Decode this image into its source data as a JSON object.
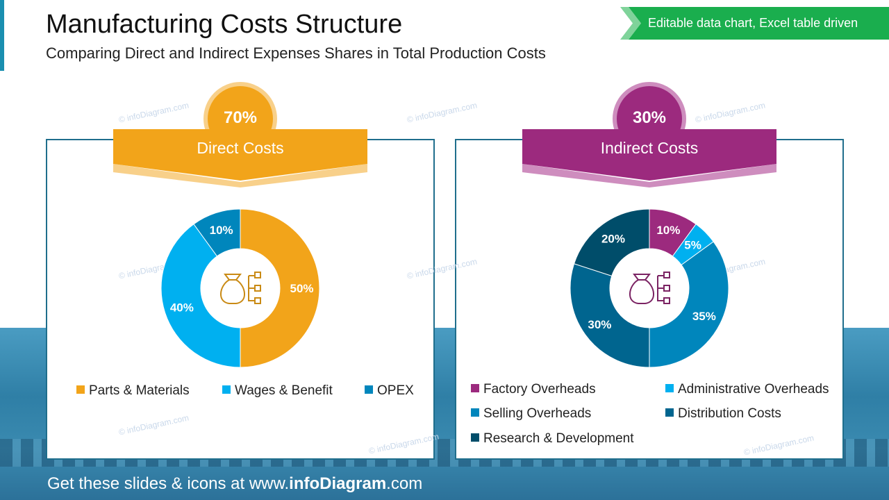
{
  "header": {
    "title": "Manufacturing Costs Structure",
    "subtitle": "Comparing Direct and Indirect Expenses Shares in Total Production Costs",
    "ribbon": "Editable data chart, Excel table driven"
  },
  "watermark": "© infoDiagram.com",
  "footer": {
    "prefix": "Get these slides & icons at www.",
    "brand": "infoDiagram",
    "suffix": ".com"
  },
  "chart_data": [
    {
      "type": "pie",
      "donut": true,
      "title": "Direct Costs",
      "total_share": "70%",
      "categories": [
        "Parts & Materials",
        "Wages & Benefit",
        "OPEX"
      ],
      "values": [
        50,
        40,
        10
      ],
      "labels": [
        "50%",
        "40%",
        "10%"
      ],
      "colors": [
        "#F2A41A",
        "#00B0F0",
        "#0086BC"
      ],
      "legend_placement": "bottom",
      "accent": "#F2A41A",
      "center_icon": "money-bag-hierarchy-icon"
    },
    {
      "type": "pie",
      "donut": true,
      "title": "Indirect Costs",
      "total_share": "30%",
      "categories": [
        "Factory Overheads",
        "Administrative Overheads",
        "Selling Overheads",
        "Distribution Costs",
        "Research & Development"
      ],
      "values": [
        10,
        5,
        35,
        30,
        20
      ],
      "labels": [
        "10%",
        "5%",
        "35%",
        "30%",
        "20%"
      ],
      "colors": [
        "#9C2A7E",
        "#00B0F0",
        "#0086BC",
        "#00658F",
        "#004D6A"
      ],
      "legend_placement": "bottom",
      "accent": "#9C2A7E",
      "center_icon": "money-bag-hierarchy-icon"
    }
  ]
}
